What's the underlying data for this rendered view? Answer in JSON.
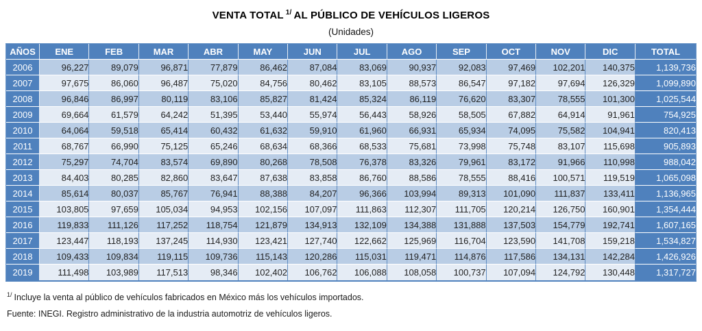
{
  "page": {
    "title_prefix": "VENTA TOTAL",
    "title_superscript": "1/",
    "title_suffix": "AL PÚBLICO DE VEHÍCULOS LIGEROS",
    "subtitle": "(Unidades)"
  },
  "footnotes": {
    "note1_superscript": "1/",
    "note1_text": "Incluye la venta al público de vehículos fabricados en México más los vehículos importados.",
    "source_text": "Fuente: INEGI. Registro administrativo de la industria automotriz de vehículos ligeros."
  },
  "colors": {
    "header_bg": "#4F81BD",
    "band_dark": "#B9CDE5",
    "band_light": "#E5ECF5",
    "border_blue": "#5F8BC0",
    "header_text": "#FFFFFF",
    "cell_text": "#1F1F1F"
  },
  "chart_data": {
    "type": "table",
    "title": "VENTA TOTAL 1/ AL PÚBLICO DE VEHÍCULOS LIGEROS",
    "subtitle": "(Unidades)",
    "columns": [
      "AÑOS",
      "ENE",
      "FEB",
      "MAR",
      "ABR",
      "MAY",
      "JUN",
      "JUL",
      "AGO",
      "SEP",
      "OCT",
      "NOV",
      "DIC",
      "TOTAL"
    ],
    "rows": [
      {
        "year": "2006",
        "values": [
          "96,227",
          "89,079",
          "96,871",
          "77,879",
          "86,462",
          "87,084",
          "83,069",
          "90,937",
          "92,083",
          "97,469",
          "102,201",
          "140,375"
        ],
        "total": "1,139,736"
      },
      {
        "year": "2007",
        "values": [
          "97,675",
          "86,060",
          "96,487",
          "75,020",
          "84,756",
          "80,462",
          "83,105",
          "88,573",
          "86,547",
          "97,182",
          "97,694",
          "126,329"
        ],
        "total": "1,099,890"
      },
      {
        "year": "2008",
        "values": [
          "96,846",
          "86,997",
          "80,119",
          "83,106",
          "85,827",
          "81,424",
          "85,324",
          "86,119",
          "76,620",
          "83,307",
          "78,555",
          "101,300"
        ],
        "total": "1,025,544"
      },
      {
        "year": "2009",
        "values": [
          "69,664",
          "61,579",
          "64,242",
          "51,395",
          "53,440",
          "55,974",
          "56,443",
          "58,926",
          "58,505",
          "67,882",
          "64,914",
          "91,961"
        ],
        "total": "754,925"
      },
      {
        "year": "2010",
        "values": [
          "64,064",
          "59,518",
          "65,414",
          "60,432",
          "61,632",
          "59,910",
          "61,960",
          "66,931",
          "65,934",
          "74,095",
          "75,582",
          "104,941"
        ],
        "total": "820,413"
      },
      {
        "year": "2011",
        "values": [
          "68,767",
          "66,990",
          "75,125",
          "65,246",
          "68,634",
          "68,366",
          "68,533",
          "75,681",
          "73,998",
          "75,748",
          "83,107",
          "115,698"
        ],
        "total": "905,893"
      },
      {
        "year": "2012",
        "values": [
          "75,297",
          "74,704",
          "83,574",
          "69,890",
          "80,268",
          "78,508",
          "76,378",
          "83,326",
          "79,961",
          "83,172",
          "91,966",
          "110,998"
        ],
        "total": "988,042"
      },
      {
        "year": "2013",
        "values": [
          "84,403",
          "80,285",
          "82,860",
          "83,647",
          "87,638",
          "83,858",
          "86,760",
          "88,586",
          "78,555",
          "88,416",
          "100,571",
          "119,519"
        ],
        "total": "1,065,098"
      },
      {
        "year": "2014",
        "values": [
          "85,614",
          "80,037",
          "85,767",
          "76,941",
          "88,388",
          "84,207",
          "96,366",
          "103,994",
          "89,313",
          "101,090",
          "111,837",
          "133,411"
        ],
        "total": "1,136,965"
      },
      {
        "year": "2015",
        "values": [
          "103,805",
          "97,659",
          "105,034",
          "94,953",
          "102,156",
          "107,097",
          "111,863",
          "112,307",
          "111,705",
          "120,214",
          "126,750",
          "160,901"
        ],
        "total": "1,354,444"
      },
      {
        "year": "2016",
        "values": [
          "119,833",
          "111,126",
          "117,252",
          "118,754",
          "121,879",
          "134,913",
          "132,109",
          "134,388",
          "131,888",
          "137,503",
          "154,779",
          "192,741"
        ],
        "total": "1,607,165"
      },
      {
        "year": "2017",
        "values": [
          "123,447",
          "118,193",
          "137,245",
          "114,930",
          "123,421",
          "127,740",
          "122,662",
          "125,969",
          "116,704",
          "123,590",
          "141,708",
          "159,218"
        ],
        "total": "1,534,827"
      },
      {
        "year": "2018",
        "values": [
          "109,433",
          "109,834",
          "119,115",
          "109,736",
          "115,143",
          "120,286",
          "115,031",
          "119,471",
          "114,876",
          "117,586",
          "134,131",
          "142,284"
        ],
        "total": "1,426,926"
      },
      {
        "year": "2019",
        "values": [
          "111,498",
          "103,989",
          "117,513",
          "98,346",
          "102,402",
          "106,762",
          "106,088",
          "108,058",
          "100,737",
          "107,094",
          "124,792",
          "130,448"
        ],
        "total": "1,317,727"
      }
    ]
  }
}
